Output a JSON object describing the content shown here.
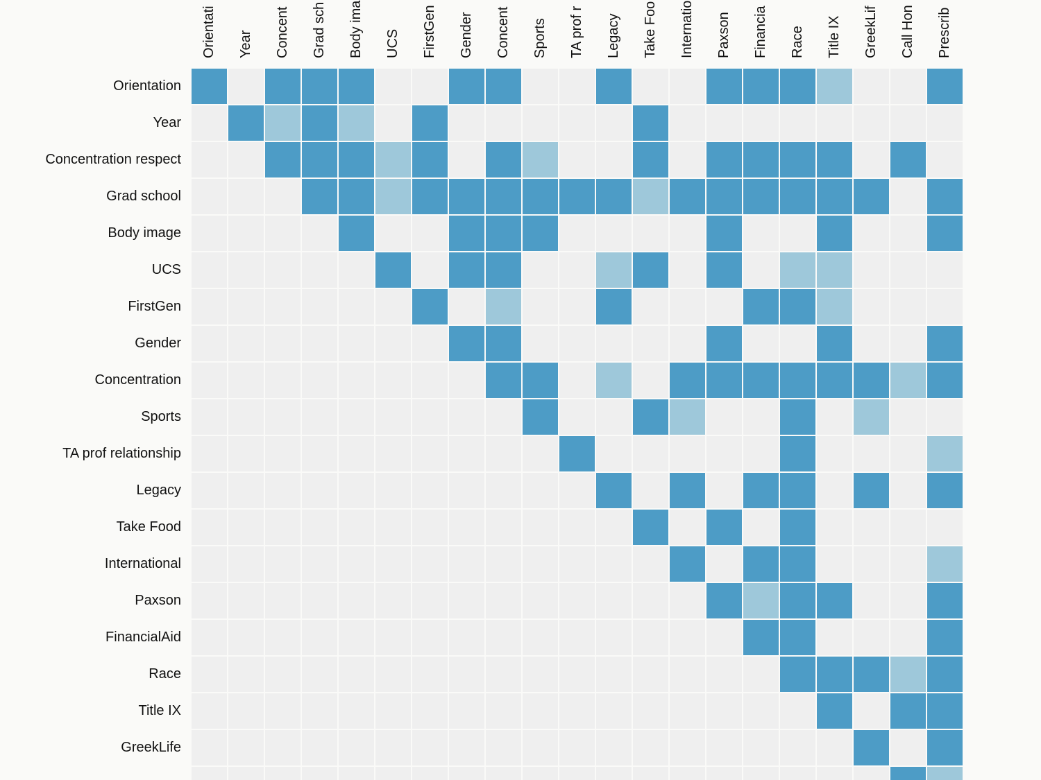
{
  "chart_data": {
    "type": "heatmap",
    "x": [
      "Orientati",
      "Year",
      "Concent",
      "Grad sch",
      "Body ima",
      "UCS",
      "FirstGen",
      "Gender",
      "Concent",
      "Sports",
      "TA prof r",
      "Legacy",
      "Take Foo",
      "Internatio",
      "Paxson",
      "Financia",
      "Race",
      "Title IX",
      "GreekLif",
      "Call Hon",
      "Prescrib"
    ],
    "y": [
      "Orientation",
      "Year",
      "Concentration respect",
      "Grad school",
      "Body image",
      "UCS",
      "FirstGen",
      "Gender",
      "Concentration",
      "Sports",
      "TA prof relationship",
      "Legacy",
      "Take Food",
      "International",
      "Paxson",
      "FinancialAid",
      "Race",
      "Title IX",
      "GreekLife",
      null
    ],
    "colors": [
      "#efefef",
      "#9ec8da",
      "#4d9cc6"
    ],
    "values": [
      [
        2,
        0,
        2,
        2,
        2,
        0,
        0,
        2,
        2,
        0,
        0,
        2,
        0,
        0,
        2,
        2,
        2,
        1,
        0,
        0,
        2
      ],
      [
        0,
        2,
        1,
        2,
        1,
        0,
        2,
        0,
        0,
        0,
        0,
        0,
        2,
        0,
        0,
        0,
        0,
        0,
        0,
        0,
        0
      ],
      [
        0,
        0,
        2,
        2,
        2,
        1,
        2,
        0,
        2,
        1,
        0,
        0,
        2,
        0,
        2,
        2,
        2,
        2,
        0,
        2,
        0
      ],
      [
        0,
        0,
        0,
        2,
        2,
        1,
        2,
        2,
        2,
        2,
        2,
        2,
        1,
        2,
        2,
        2,
        2,
        2,
        2,
        0,
        2
      ],
      [
        0,
        0,
        0,
        0,
        2,
        0,
        0,
        2,
        2,
        2,
        0,
        0,
        0,
        0,
        2,
        0,
        0,
        2,
        0,
        0,
        2
      ],
      [
        0,
        0,
        0,
        0,
        0,
        2,
        0,
        2,
        2,
        0,
        0,
        1,
        2,
        0,
        2,
        0,
        1,
        1,
        0,
        0,
        0
      ],
      [
        0,
        0,
        0,
        0,
        0,
        0,
        2,
        0,
        1,
        0,
        0,
        2,
        0,
        0,
        0,
        2,
        2,
        1,
        0,
        0,
        0
      ],
      [
        0,
        0,
        0,
        0,
        0,
        0,
        0,
        2,
        2,
        0,
        0,
        0,
        0,
        0,
        2,
        0,
        0,
        2,
        0,
        0,
        2
      ],
      [
        0,
        0,
        0,
        0,
        0,
        0,
        0,
        0,
        2,
        2,
        0,
        1,
        0,
        2,
        2,
        2,
        2,
        2,
        2,
        1,
        2
      ],
      [
        0,
        0,
        0,
        0,
        0,
        0,
        0,
        0,
        0,
        2,
        0,
        0,
        2,
        1,
        0,
        0,
        2,
        0,
        1,
        0,
        0
      ],
      [
        0,
        0,
        0,
        0,
        0,
        0,
        0,
        0,
        0,
        0,
        2,
        0,
        0,
        0,
        0,
        0,
        2,
        0,
        0,
        0,
        1
      ],
      [
        0,
        0,
        0,
        0,
        0,
        0,
        0,
        0,
        0,
        0,
        0,
        2,
        0,
        2,
        0,
        2,
        2,
        0,
        2,
        0,
        2
      ],
      [
        0,
        0,
        0,
        0,
        0,
        0,
        0,
        0,
        0,
        0,
        0,
        0,
        2,
        0,
        2,
        0,
        2,
        0,
        0,
        0,
        0
      ],
      [
        0,
        0,
        0,
        0,
        0,
        0,
        0,
        0,
        0,
        0,
        0,
        0,
        0,
        2,
        0,
        2,
        2,
        0,
        0,
        0,
        1
      ],
      [
        0,
        0,
        0,
        0,
        0,
        0,
        0,
        0,
        0,
        0,
        0,
        0,
        0,
        0,
        2,
        1,
        2,
        2,
        0,
        0,
        2
      ],
      [
        0,
        0,
        0,
        0,
        0,
        0,
        0,
        0,
        0,
        0,
        0,
        0,
        0,
        0,
        0,
        2,
        2,
        0,
        0,
        0,
        2
      ],
      [
        0,
        0,
        0,
        0,
        0,
        0,
        0,
        0,
        0,
        0,
        0,
        0,
        0,
        0,
        0,
        0,
        2,
        2,
        2,
        1,
        2
      ],
      [
        0,
        0,
        0,
        0,
        0,
        0,
        0,
        0,
        0,
        0,
        0,
        0,
        0,
        0,
        0,
        0,
        0,
        2,
        0,
        2,
        2
      ],
      [
        0,
        0,
        0,
        0,
        0,
        0,
        0,
        0,
        0,
        0,
        0,
        0,
        0,
        0,
        0,
        0,
        0,
        0,
        2,
        0,
        2
      ],
      [
        0,
        0,
        0,
        0,
        0,
        0,
        0,
        0,
        0,
        0,
        0,
        0,
        0,
        0,
        0,
        0,
        0,
        0,
        0,
        2,
        1
      ]
    ]
  }
}
